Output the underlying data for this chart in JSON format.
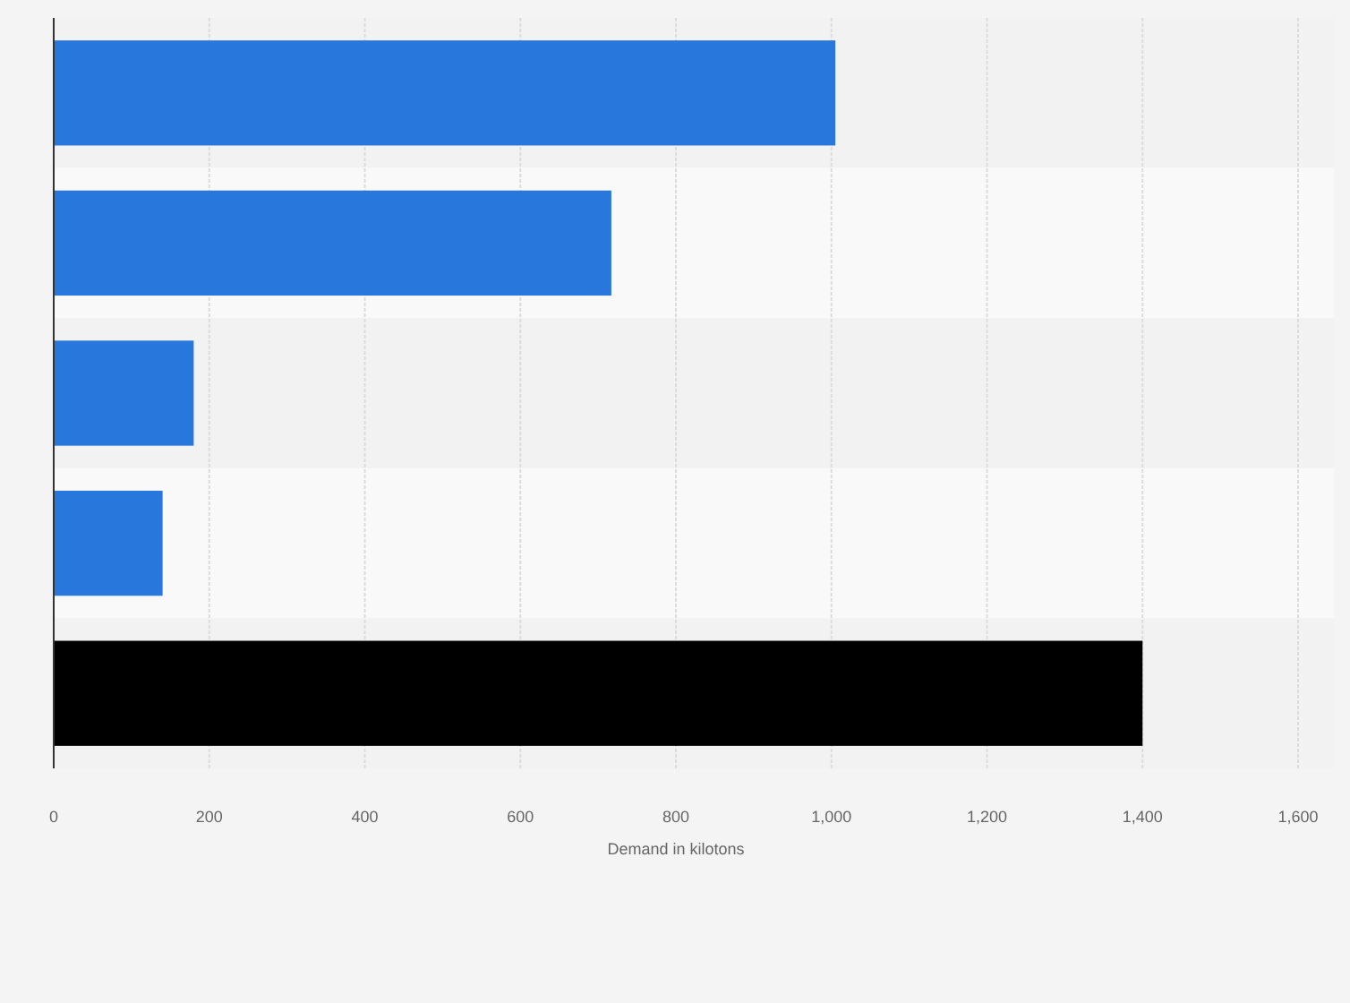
{
  "chart_data": {
    "type": "bar",
    "orientation": "horizontal",
    "xlabel": "Demand in kilotons",
    "categories": [
      null,
      null,
      null,
      null,
      null
    ],
    "values": [
      1005,
      717,
      180,
      140,
      1400
    ],
    "colors": [
      "#2777dd",
      "#2777dd",
      "#2777dd",
      "#2777dd",
      "#000000"
    ],
    "xlim": [
      0,
      1600
    ],
    "xticks": [
      0,
      200,
      400,
      600,
      {
        "value": 800,
        "label": "800"
      },
      {
        "value": 1000,
        "label": "1,000"
      },
      {
        "value": 1200,
        "label": "1,200"
      },
      {
        "value": 1400,
        "label": "1,400"
      },
      {
        "value": 1600,
        "label": "1,600"
      }
    ],
    "grid": "x"
  }
}
